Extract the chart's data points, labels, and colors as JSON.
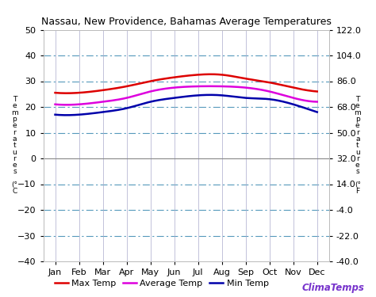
{
  "title": "Nassau, New Providence, Bahamas Average Temperatures",
  "months": [
    "Jan",
    "Feb",
    "Mar",
    "Apr",
    "May",
    "Jun",
    "Jul",
    "Aug",
    "Sep",
    "Oct",
    "Nov",
    "Dec"
  ],
  "max_temp_c": [
    25.5,
    25.5,
    26.5,
    28.0,
    30.0,
    31.5,
    32.5,
    32.5,
    31.0,
    29.5,
    27.5,
    26.0
  ],
  "avg_temp_c": [
    21.0,
    21.0,
    22.0,
    23.5,
    26.0,
    27.5,
    28.0,
    28.0,
    27.5,
    26.0,
    23.5,
    22.0
  ],
  "min_temp_c": [
    17.0,
    17.0,
    18.0,
    19.5,
    22.0,
    23.5,
    24.5,
    24.5,
    23.5,
    23.0,
    21.0,
    18.0
  ],
  "ylim_c": [
    -40,
    50
  ],
  "yticks_c": [
    -40,
    -30,
    -20,
    -10,
    0,
    10,
    20,
    30,
    40,
    50
  ],
  "yticks_f_labels": [
    "-40.0",
    "-22.0",
    "-4.0",
    "14.0",
    "32.0",
    "50.0",
    "68.0",
    "86.0",
    "104.0",
    "122.0"
  ],
  "hline_dashed": [
    40,
    30,
    20,
    10,
    -10,
    -20,
    -30
  ],
  "hline_solid": [
    0
  ],
  "max_color": "#dd0000",
  "avg_color": "#dd00dd",
  "min_color": "#0000aa",
  "hline_dash_color": "#5599bb",
  "hline_solid_color": "#888888",
  "vgrid_color": "#aaaacc",
  "bg_color": "#ffffff",
  "plot_bg_color": "#ffffff",
  "left_ylabel": "T\ne\nm\np\ne\nr\na\nt\nu\nr\ne\ns\n \n(°\nC",
  "right_ylabel": "T\ne\nm\np\ne\nr\na\nt\nu\nr\ne\ns\n \n(°\nF",
  "watermark": "ClimaTemps",
  "watermark_color": "#7733cc",
  "legend_labels": [
    "Max Temp",
    "Average Temp",
    "Min Temp"
  ],
  "title_fontsize": 9,
  "tick_fontsize": 8,
  "legend_fontsize": 8
}
